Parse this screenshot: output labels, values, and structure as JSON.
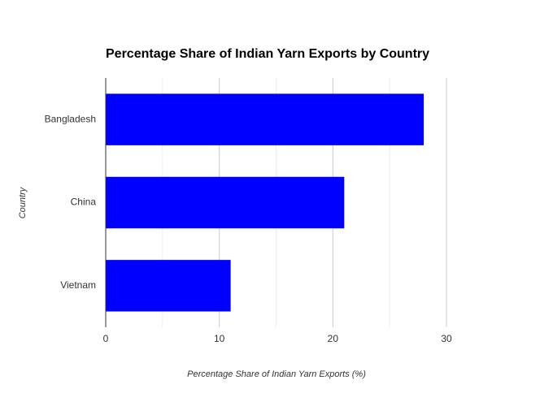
{
  "chart_data": {
    "type": "barh",
    "title": "Percentage Share of Indian Yarn Exports by Country",
    "x_label": "Percentage Share of Indian Yarn Exports (%)",
    "y_label": "Country",
    "categories": [
      "Bangladesh",
      "China",
      "Vietnam"
    ],
    "values": [
      28,
      21,
      11
    ],
    "color": "#0000ff",
    "xlim": [
      0,
      30
    ],
    "xticks": [
      0,
      10,
      20,
      30
    ],
    "minor_xticks": [
      5,
      15,
      25
    ],
    "grid": true
  }
}
